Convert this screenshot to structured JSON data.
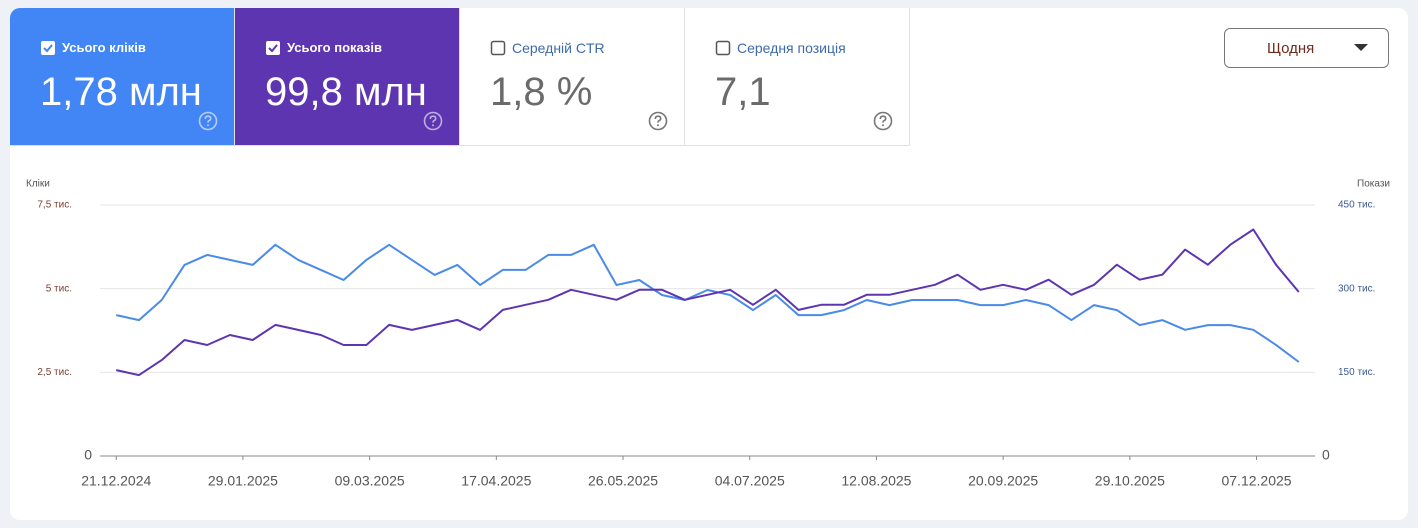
{
  "metrics": [
    {
      "label": "Усього кліків",
      "value": "1,78 млн",
      "checked": true,
      "color": "#4285f4"
    },
    {
      "label": "Усього показів",
      "value": "99,8 млн",
      "checked": true,
      "color": "#5e35b1"
    },
    {
      "label": "Середній CTR",
      "value": "1,8 %",
      "checked": false,
      "color": "#ffffff"
    },
    {
      "label": "Середня позиція",
      "value": "7,1",
      "checked": false,
      "color": "#ffffff"
    }
  ],
  "period": "Щодня",
  "chart_data": {
    "type": "line",
    "y_label": "Кліки",
    "y2_label": "Покази",
    "x": [
      "2024-12-21",
      "2024-12-28",
      "2025-01-04",
      "2025-01-11",
      "2025-01-18",
      "2025-01-25",
      "2025-02-01",
      "2025-02-08",
      "2025-02-15",
      "2025-02-22",
      "2025-03-01",
      "2025-03-08",
      "2025-03-15",
      "2025-03-22",
      "2025-03-29",
      "2025-04-05",
      "2025-04-12",
      "2025-04-19",
      "2025-04-26",
      "2025-05-03",
      "2025-05-10",
      "2025-05-17",
      "2025-05-24",
      "2025-05-31",
      "2025-06-07",
      "2025-06-14",
      "2025-06-21",
      "2025-06-28",
      "2025-07-05",
      "2025-07-12",
      "2025-07-19",
      "2025-07-26",
      "2025-08-02",
      "2025-08-09",
      "2025-08-16",
      "2025-08-23",
      "2025-08-30",
      "2025-09-06",
      "2025-09-13",
      "2025-09-20",
      "2025-09-27",
      "2025-10-04",
      "2025-10-11",
      "2025-10-18",
      "2025-10-25",
      "2025-11-01",
      "2025-11-08",
      "2025-11-15",
      "2025-11-22",
      "2025-11-29",
      "2025-12-06",
      "2025-12-13",
      "2025-12-20"
    ],
    "xlim": [
      "2024-12-16",
      "2025-12-25"
    ],
    "xticks": [
      {
        "value": "2024-12-21",
        "label": "21.12.2024"
      },
      {
        "value": "2025-01-29",
        "label": "29.01.2025"
      },
      {
        "value": "2025-03-09",
        "label": "09.03.2025"
      },
      {
        "value": "2025-04-17",
        "label": "17.04.2025"
      },
      {
        "value": "2025-05-26",
        "label": "26.05.2025"
      },
      {
        "value": "2025-07-04",
        "label": "04.07.2025"
      },
      {
        "value": "2025-08-12",
        "label": "12.08.2025"
      },
      {
        "value": "2025-09-20",
        "label": "20.09.2025"
      },
      {
        "value": "2025-10-29",
        "label": "29.10.2025"
      },
      {
        "value": "2025-12-07",
        "label": "07.12.2025"
      }
    ],
    "ylim": [
      0,
      7500
    ],
    "yticks": [
      0,
      {
        "value": 2500,
        "label": "2,5 тис."
      },
      {
        "value": 5000,
        "label": "5 тис."
      },
      {
        "value": 7500,
        "label": "7,5 тис."
      }
    ],
    "y2lim": [
      0,
      450000
    ],
    "y2ticks": [
      0,
      {
        "value": 150000,
        "label": "150 тис."
      },
      {
        "value": 300000,
        "label": "300 тис."
      },
      {
        "value": 450000,
        "label": "450 тис."
      }
    ],
    "grid": true,
    "series": [
      {
        "name": "Кліки",
        "color": "#4a8ae8",
        "values": [
          4210,
          4060,
          4660,
          5710,
          6010,
          5860,
          5710,
          6310,
          5860,
          5560,
          5260,
          5860,
          6310,
          5860,
          5410,
          5710,
          5110,
          5560,
          5560,
          6010,
          6010,
          6310,
          5110,
          5260,
          4810,
          4660,
          4960,
          4810,
          4360,
          4810,
          4210,
          4210,
          4360,
          4660,
          4510,
          4660,
          4660,
          4660,
          4510,
          4510,
          4660,
          4510,
          4060,
          4510,
          4360,
          3910,
          4060,
          3770,
          3910,
          3910,
          3770,
          3320,
          2810
        ]
      },
      {
        "name": "Покази",
        "color": "#5e35b1",
        "axis": "y2",
        "values": [
          154000,
          145000,
          172000,
          208000,
          199000,
          217000,
          208000,
          235000,
          226000,
          217000,
          199000,
          199000,
          235000,
          226000,
          235000,
          244000,
          226000,
          262000,
          271000,
          280000,
          298000,
          289000,
          280000,
          298000,
          298000,
          280000,
          289000,
          298000,
          271000,
          298000,
          262000,
          271000,
          271000,
          289000,
          289000,
          298000,
          307000,
          325000,
          298000,
          307000,
          298000,
          316000,
          289000,
          307000,
          343000,
          316000,
          325000,
          370000,
          343000,
          379000,
          406000,
          343000,
          294000
        ]
      }
    ]
  }
}
